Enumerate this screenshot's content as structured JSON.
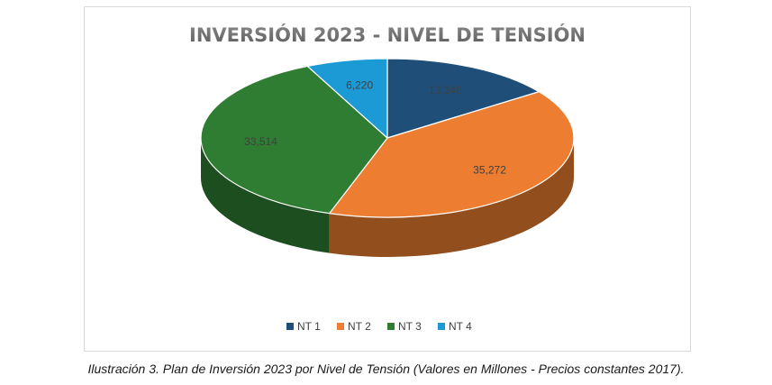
{
  "chart_data": {
    "type": "pie",
    "title": "INVERSIÓN 2023 - NIVEL DE TENSIÓN",
    "categories": [
      "NT 1",
      "NT 2",
      "NT 3",
      "NT 4"
    ],
    "values": [
      13346,
      35272,
      33514,
      6220
    ],
    "value_labels": [
      "13,346",
      "35,272",
      "33,514",
      "6,220"
    ],
    "colors": [
      "#1f4e79",
      "#ed7d31",
      "#2e7d32",
      "#1b9ad6"
    ],
    "legend": "bottom",
    "style": "3d"
  },
  "caption": "Ilustración 3. Plan de Inversión 2023 por Nivel de Tensión (Valores en Millones - Precios constantes 2017)."
}
